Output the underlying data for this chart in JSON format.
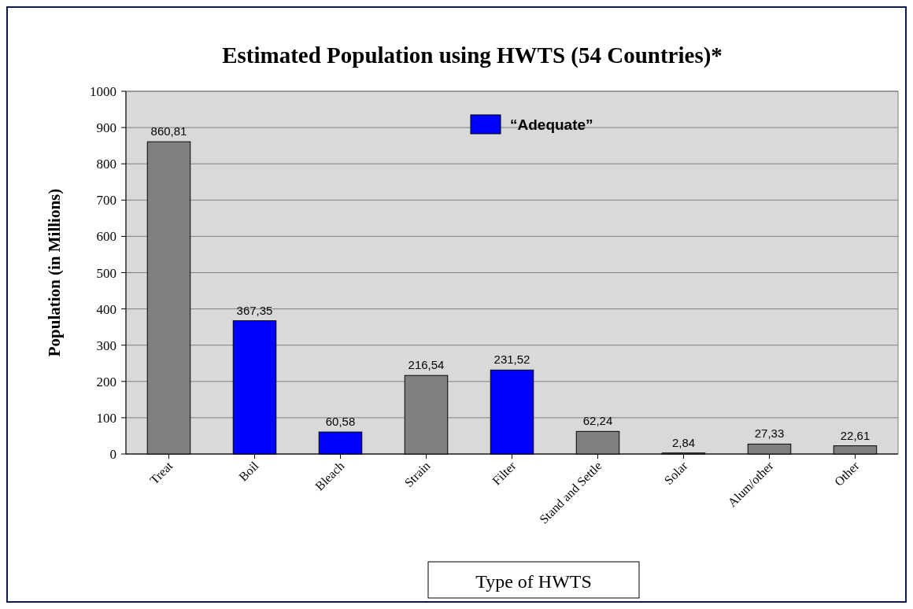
{
  "chart_data": {
    "type": "bar",
    "title": "Estimated Population using HWTS  (54 Countries)*",
    "xlabel": "Type of HWTS",
    "ylabel": "Population (in Millions)",
    "categories": [
      "Treat",
      "Boil",
      "Bleach",
      "Strain",
      "Filter",
      "Stand and Settle",
      "Solar",
      "Alum/other",
      "Other"
    ],
    "series": [
      {
        "color": "#808080",
        "values": [
          860.81,
          null,
          null,
          216.54,
          null,
          62.24,
          2.84,
          27.33,
          22.61
        ],
        "value_labels": [
          "860,81",
          null,
          null,
          "216,54",
          null,
          "62,24",
          "2,84",
          "27,33",
          "22,61"
        ]
      },
      {
        "name": "“Adequate”",
        "color": "#0000ff",
        "values": [
          null,
          367.35,
          60.58,
          null,
          231.52,
          null,
          null,
          null,
          null
        ],
        "value_labels": [
          null,
          "367,35",
          "60,58",
          null,
          "231,52",
          null,
          null,
          null,
          null
        ]
      }
    ],
    "ylim": [
      0,
      1000
    ],
    "yticks": [
      0,
      100,
      200,
      300,
      400,
      500,
      600,
      700,
      800,
      900,
      1000
    ],
    "grid": "y",
    "legend": "top right"
  }
}
